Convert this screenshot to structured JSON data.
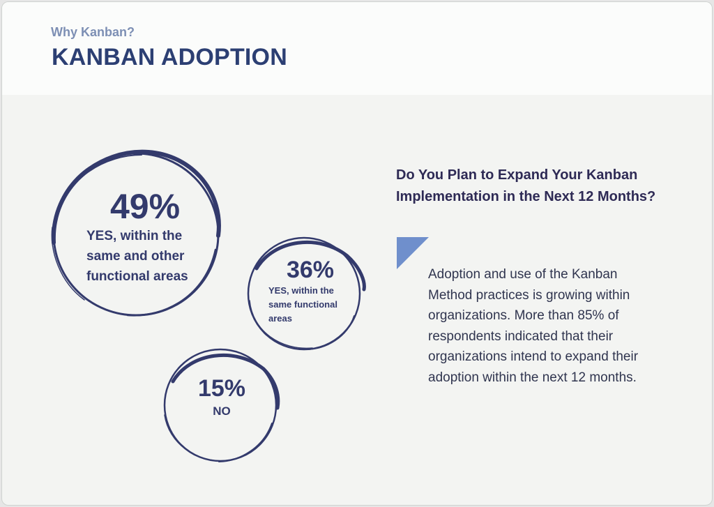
{
  "header": {
    "kicker": "Why Kanban?",
    "title": "KANBAN ADOPTION"
  },
  "stats": [
    {
      "percent": "49%",
      "label": "YES, within the same and other functional areas",
      "value": 49
    },
    {
      "percent": "36%",
      "label": "YES, within the same functional areas",
      "value": 36
    },
    {
      "percent": "15%",
      "label": "NO",
      "value": 15
    }
  ],
  "question": "Do You Plan to Expand Your Kanban Implementation in the Next 12 Months?",
  "body": "Adoption and use of the Kanban Method practices is growing within organizations. More than 85% of respondents indicated that their organizations intend to expand their adoption within the next 12 months.",
  "colors": {
    "navy": "#333a6c",
    "title": "#2c3f73",
    "kicker": "#7d8fb4",
    "accent_triangle": "#6f8fcc",
    "panel_bg": "#f3f4f2",
    "header_bg": "#fbfcfb"
  }
}
